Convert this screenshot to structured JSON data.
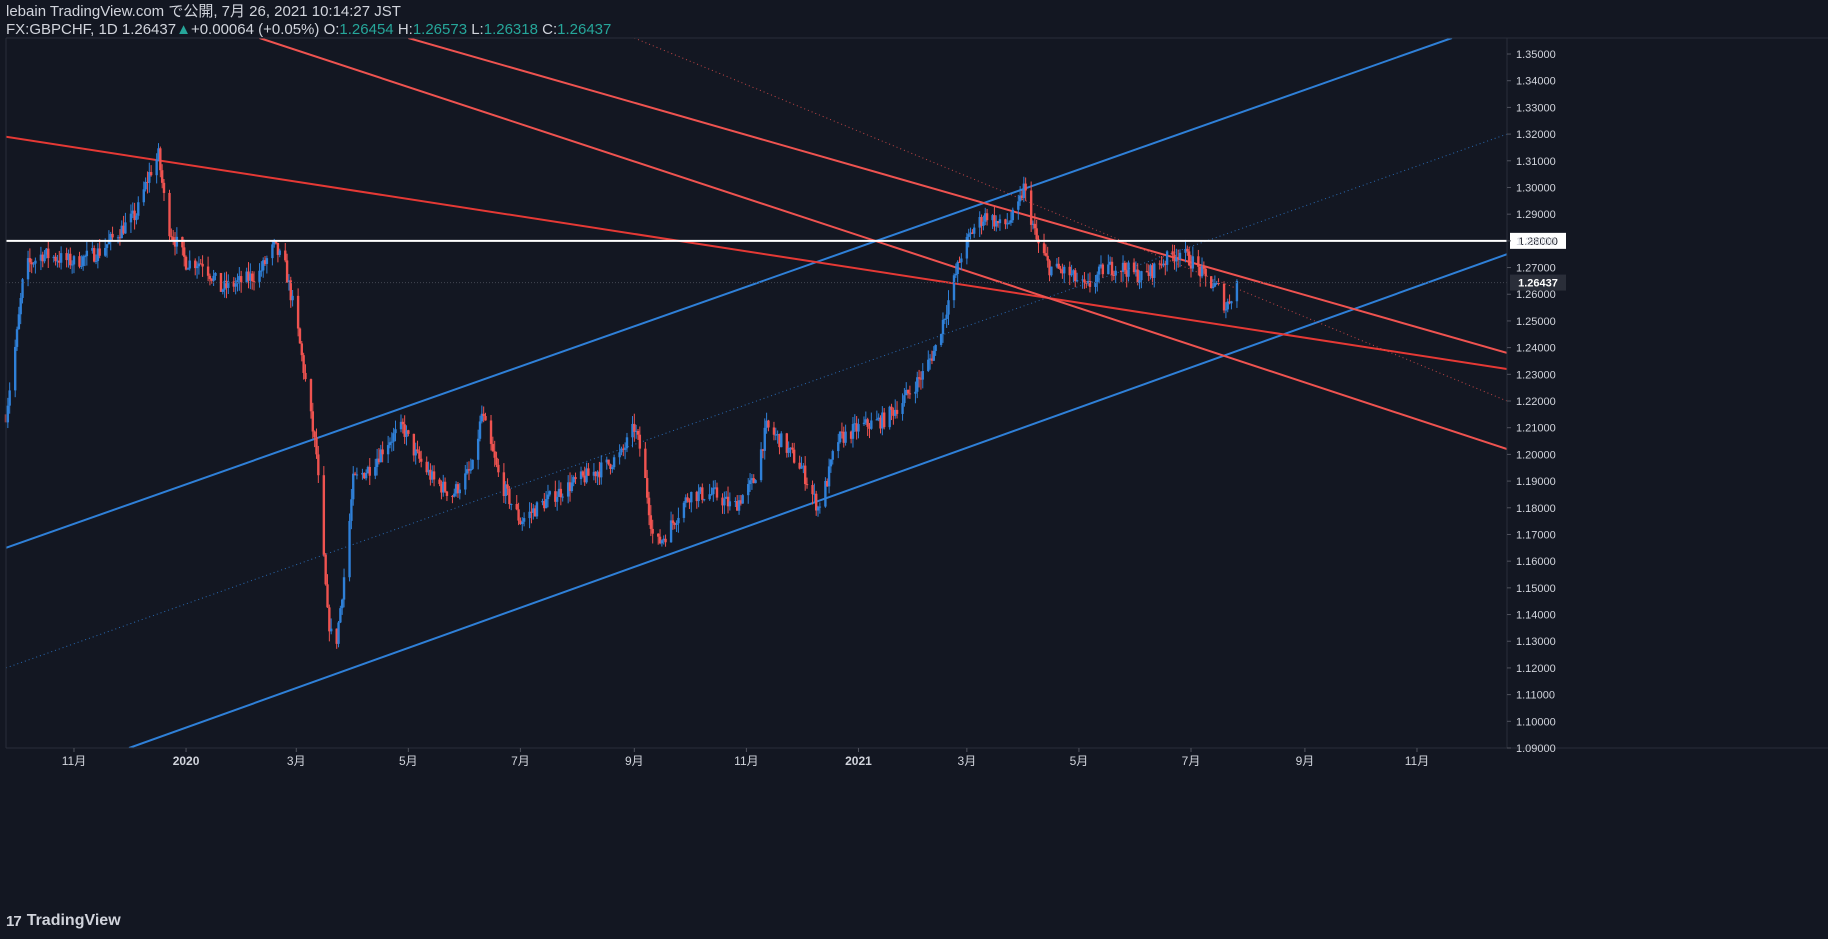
{
  "header": {
    "line1": "lebain TradingView.com で公開, 7月 26, 2021 10:14:27 JST",
    "symbol": "FX:GBPCHF, 1D",
    "last": "1.26437",
    "change_arrow": "▲",
    "change": "+0.00064 (+0.05%)",
    "o_label": "O:",
    "o_val": "1.26454",
    "h_label": "H:",
    "h_val": "1.26573",
    "l_label": "L:",
    "l_val": "1.26318",
    "c_label": "C:",
    "c_val": "1.26437"
  },
  "brand": {
    "logo": "17",
    "name": "TradingView"
  },
  "colors": {
    "background": "#131722",
    "up": "#2f80d8",
    "down": "#ef5350",
    "channel_blue": "#2f80d8",
    "trend_red": "#e53935",
    "level_white": "#ffffff",
    "axis_text": "#d1d4dc"
  },
  "chart_data": {
    "type": "candlestick",
    "symbol": "FX:GBPCHF",
    "timeframe": "1D",
    "ylim": [
      1.09,
      1.356
    ],
    "y_ticks": [
      1.09,
      1.1,
      1.11,
      1.12,
      1.13,
      1.14,
      1.15,
      1.16,
      1.17,
      1.18,
      1.19,
      1.2,
      1.21,
      1.22,
      1.23,
      1.24,
      1.25,
      1.26,
      1.27,
      1.28,
      1.29,
      1.3,
      1.31,
      1.32,
      1.33,
      1.34,
      1.35
    ],
    "y_tick_labels": [
      "1.09000",
      "1.10000",
      "1.11000",
      "1.12000",
      "1.13000",
      "1.14000",
      "1.15000",
      "1.16000",
      "1.17000",
      "1.18000",
      "1.19000",
      "1.20000",
      "1.21000",
      "1.22000",
      "1.23000",
      "1.24000",
      "1.25000",
      "1.26000",
      "1.27000",
      "1.28000",
      "1.29000",
      "1.30000",
      "1.31000",
      "1.32000",
      "1.33000",
      "1.34000",
      "1.35000"
    ],
    "x_start": "2019-09-25",
    "x_end": "2021-12-20",
    "x_ticks": [
      {
        "date": "2019-11-01",
        "label": "11月",
        "bold": false
      },
      {
        "date": "2020-01-01",
        "label": "2020",
        "bold": true
      },
      {
        "date": "2020-03-01",
        "label": "3月",
        "bold": false
      },
      {
        "date": "2020-05-01",
        "label": "5月",
        "bold": false
      },
      {
        "date": "2020-07-01",
        "label": "7月",
        "bold": false
      },
      {
        "date": "2020-09-01",
        "label": "9月",
        "bold": false
      },
      {
        "date": "2020-11-01",
        "label": "11月",
        "bold": false
      },
      {
        "date": "2021-01-01",
        "label": "2021",
        "bold": true
      },
      {
        "date": "2021-03-01",
        "label": "3月",
        "bold": false
      },
      {
        "date": "2021-05-01",
        "label": "5月",
        "bold": false
      },
      {
        "date": "2021-07-01",
        "label": "7月",
        "bold": false
      },
      {
        "date": "2021-09-01",
        "label": "9月",
        "bold": false
      },
      {
        "date": "2021-11-01",
        "label": "11月",
        "bold": false
      }
    ],
    "price_path": [
      [
        "2019-09-25",
        1.215
      ],
      [
        "2019-10-01",
        1.245
      ],
      [
        "2019-10-05",
        1.27
      ],
      [
        "2019-10-15",
        1.275
      ],
      [
        "2019-11-01",
        1.272
      ],
      [
        "2019-11-15",
        1.276
      ],
      [
        "2019-11-25",
        1.283
      ],
      [
        "2019-12-05",
        1.29
      ],
      [
        "2019-12-12",
        1.305
      ],
      [
        "2019-12-17",
        1.312
      ],
      [
        "2019-12-22",
        1.286
      ],
      [
        "2020-01-01",
        1.272
      ],
      [
        "2020-01-10",
        1.272
      ],
      [
        "2020-01-20",
        1.262
      ],
      [
        "2020-02-01",
        1.265
      ],
      [
        "2020-02-10",
        1.268
      ],
      [
        "2020-02-18",
        1.278
      ],
      [
        "2020-02-24",
        1.27
      ],
      [
        "2020-03-01",
        1.25
      ],
      [
        "2020-03-05",
        1.232
      ],
      [
        "2020-03-12",
        1.2
      ],
      [
        "2020-03-18",
        1.14
      ],
      [
        "2020-03-22",
        1.125
      ],
      [
        "2020-03-28",
        1.16
      ],
      [
        "2020-04-01",
        1.19
      ],
      [
        "2020-04-10",
        1.195
      ],
      [
        "2020-04-20",
        1.205
      ],
      [
        "2020-04-28",
        1.21
      ],
      [
        "2020-05-05",
        1.2
      ],
      [
        "2020-05-15",
        1.19
      ],
      [
        "2020-05-25",
        1.185
      ],
      [
        "2020-06-05",
        1.195
      ],
      [
        "2020-06-10",
        1.215
      ],
      [
        "2020-06-20",
        1.19
      ],
      [
        "2020-07-01",
        1.175
      ],
      [
        "2020-07-10",
        1.18
      ],
      [
        "2020-07-20",
        1.185
      ],
      [
        "2020-08-01",
        1.19
      ],
      [
        "2020-08-15",
        1.195
      ],
      [
        "2020-08-25",
        1.2
      ],
      [
        "2020-09-01",
        1.21
      ],
      [
        "2020-09-05",
        1.2
      ],
      [
        "2020-09-12",
        1.165
      ],
      [
        "2020-09-18",
        1.17
      ],
      [
        "2020-10-01",
        1.185
      ],
      [
        "2020-10-15",
        1.185
      ],
      [
        "2020-10-25",
        1.18
      ],
      [
        "2020-11-05",
        1.19
      ],
      [
        "2020-11-12",
        1.21
      ],
      [
        "2020-11-20",
        1.205
      ],
      [
        "2020-12-01",
        1.195
      ],
      [
        "2020-12-10",
        1.18
      ],
      [
        "2020-12-15",
        1.19
      ],
      [
        "2020-12-20",
        1.205
      ],
      [
        "2021-01-01",
        1.21
      ],
      [
        "2021-01-15",
        1.213
      ],
      [
        "2021-01-25",
        1.22
      ],
      [
        "2021-02-05",
        1.23
      ],
      [
        "2021-02-12",
        1.24
      ],
      [
        "2021-02-20",
        1.26
      ],
      [
        "2021-02-26",
        1.275
      ],
      [
        "2021-03-05",
        1.285
      ],
      [
        "2021-03-12",
        1.29
      ],
      [
        "2021-03-20",
        1.285
      ],
      [
        "2021-03-28",
        1.29
      ],
      [
        "2021-04-01",
        1.3
      ],
      [
        "2021-04-08",
        1.28
      ],
      [
        "2021-04-15",
        1.27
      ],
      [
        "2021-04-25",
        1.268
      ],
      [
        "2021-05-05",
        1.262
      ],
      [
        "2021-05-15",
        1.27
      ],
      [
        "2021-05-25",
        1.27
      ],
      [
        "2021-06-05",
        1.266
      ],
      [
        "2021-06-15",
        1.272
      ],
      [
        "2021-06-25",
        1.276
      ],
      [
        "2021-07-02",
        1.272
      ],
      [
        "2021-07-10",
        1.265
      ],
      [
        "2021-07-16",
        1.262
      ],
      [
        "2021-07-20",
        1.255
      ],
      [
        "2021-07-26",
        1.26437
      ]
    ],
    "horizontal_levels": [
      {
        "price": 1.28,
        "label": "1.28000"
      }
    ],
    "current_price": {
      "price": 1.26437,
      "label": "1.26437"
    },
    "trendlines": [
      {
        "name": "blue-channel-upper",
        "color": "#2f80d8",
        "style": "solid",
        "p1": [
          "2019-09-25",
          1.165
        ],
        "p2": [
          "2021-11-20",
          1.356
        ]
      },
      {
        "name": "blue-channel-lower",
        "color": "#2f80d8",
        "style": "solid",
        "p1": [
          "2019-12-01",
          1.09
        ],
        "p2": [
          "2021-12-20",
          1.275
        ]
      },
      {
        "name": "blue-channel-mid",
        "color": "#2f80d8",
        "style": "dotted",
        "p1": [
          "2019-09-25",
          1.12
        ],
        "p2": [
          "2021-12-20",
          1.32
        ]
      },
      {
        "name": "red-long-trend",
        "color": "#e53935",
        "style": "solid",
        "p1": [
          "2019-09-25",
          1.319
        ],
        "p2": [
          "2021-12-20",
          1.232
        ]
      },
      {
        "name": "red-upper",
        "color": "#ef5350",
        "style": "solid",
        "p1": [
          "2020-05-01",
          1.356
        ],
        "p2": [
          "2021-12-20",
          1.238
        ]
      },
      {
        "name": "red-lower",
        "color": "#ef5350",
        "style": "solid",
        "p1": [
          "2020-02-10",
          1.356
        ],
        "p2": [
          "2021-12-20",
          1.202
        ]
      },
      {
        "name": "red-mid",
        "color": "#ef5350",
        "style": "dotted",
        "p1": [
          "2020-09-01",
          1.356
        ],
        "p2": [
          "2021-12-20",
          1.22
        ]
      }
    ],
    "grid": false,
    "legend": "top-left"
  }
}
